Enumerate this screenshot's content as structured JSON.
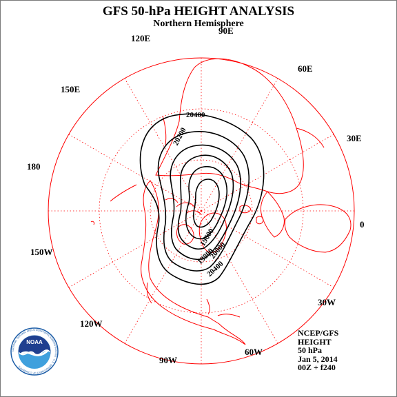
{
  "header": {
    "title": "GFS 50-hPa HEIGHT ANALYSIS",
    "subtitle": "Northern Hemisphere"
  },
  "longitude_labels": {
    "e90": "90E",
    "e60": "60E",
    "e30": "30E",
    "e0": "0",
    "w30": "30W",
    "w60": "60W",
    "w90": "90W",
    "w120": "120W",
    "w150": "150W",
    "d180": "180",
    "e150": "150E",
    "e120": "120E"
  },
  "contour_labels": [
    "20400",
    "20200",
    "19600",
    "19800",
    "20400",
    "20000"
  ],
  "info": {
    "source": "NCEP/GFS",
    "field": "HEIGHT",
    "level": "50 hPa",
    "date": "Jan 5, 2014",
    "run": "00Z + f240"
  },
  "logo": {
    "text": "NOAA",
    "ring_text": "NATIONAL OCEANIC AND ATMOSPHERIC ADMINISTRATION · U.S. DEPARTMENT OF COMMERCE"
  },
  "colors": {
    "map_lines": "#ff0000",
    "contours": "#000000",
    "logo_blue": "#1f5fa8"
  }
}
